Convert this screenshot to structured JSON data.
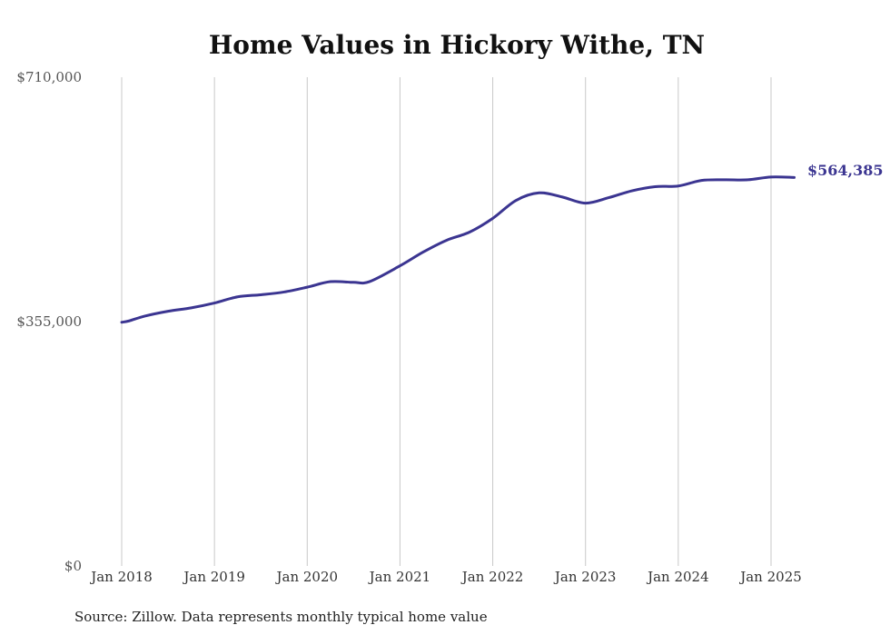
{
  "chart_data": {
    "type": "line",
    "title": "Home Values in Hickory Withe, TN",
    "xlabel": "",
    "ylabel": "",
    "source_note": "Source: Zillow. Data represents monthly typical home value",
    "ylim": [
      0,
      710000
    ],
    "yticks": [
      {
        "value": 0,
        "label": "$0"
      },
      {
        "value": 355000,
        "label": "$355,000"
      },
      {
        "value": 710000,
        "label": "$710,000"
      }
    ],
    "xlim": [
      2018.0,
      2025.25
    ],
    "xticks": [
      {
        "value": 2018,
        "label": "Jan 2018"
      },
      {
        "value": 2019,
        "label": "Jan 2019"
      },
      {
        "value": 2020,
        "label": "Jan 2020"
      },
      {
        "value": 2021,
        "label": "Jan 2021"
      },
      {
        "value": 2022,
        "label": "Jan 2022"
      },
      {
        "value": 2023,
        "label": "Jan 2023"
      },
      {
        "value": 2024,
        "label": "Jan 2024"
      },
      {
        "value": 2025,
        "label": "Jan 2025"
      }
    ],
    "grid": "vertical",
    "line_color": "#3b3591",
    "end_label": "$564,385",
    "series": [
      {
        "points": [
          {
            "x": 2018.0,
            "y": 354000
          },
          {
            "x": 2018.08,
            "y": 356000
          },
          {
            "x": 2018.25,
            "y": 363000
          },
          {
            "x": 2018.5,
            "y": 370000
          },
          {
            "x": 2018.75,
            "y": 375000
          },
          {
            "x": 2019.0,
            "y": 382000
          },
          {
            "x": 2019.25,
            "y": 391000
          },
          {
            "x": 2019.5,
            "y": 394000
          },
          {
            "x": 2019.75,
            "y": 398000
          },
          {
            "x": 2020.0,
            "y": 405000
          },
          {
            "x": 2020.25,
            "y": 413000
          },
          {
            "x": 2020.5,
            "y": 412000
          },
          {
            "x": 2020.67,
            "y": 413000
          },
          {
            "x": 2021.0,
            "y": 436000
          },
          {
            "x": 2021.25,
            "y": 456000
          },
          {
            "x": 2021.5,
            "y": 473000
          },
          {
            "x": 2021.75,
            "y": 485000
          },
          {
            "x": 2022.0,
            "y": 505000
          },
          {
            "x": 2022.25,
            "y": 531000
          },
          {
            "x": 2022.5,
            "y": 542000
          },
          {
            "x": 2022.75,
            "y": 536000
          },
          {
            "x": 2023.0,
            "y": 527000
          },
          {
            "x": 2023.25,
            "y": 535000
          },
          {
            "x": 2023.5,
            "y": 545000
          },
          {
            "x": 2023.75,
            "y": 551000
          },
          {
            "x": 2024.0,
            "y": 552000
          },
          {
            "x": 2024.25,
            "y": 560000
          },
          {
            "x": 2024.5,
            "y": 561000
          },
          {
            "x": 2024.75,
            "y": 561000
          },
          {
            "x": 2025.0,
            "y": 565000
          },
          {
            "x": 2025.25,
            "y": 564385
          }
        ]
      }
    ]
  }
}
